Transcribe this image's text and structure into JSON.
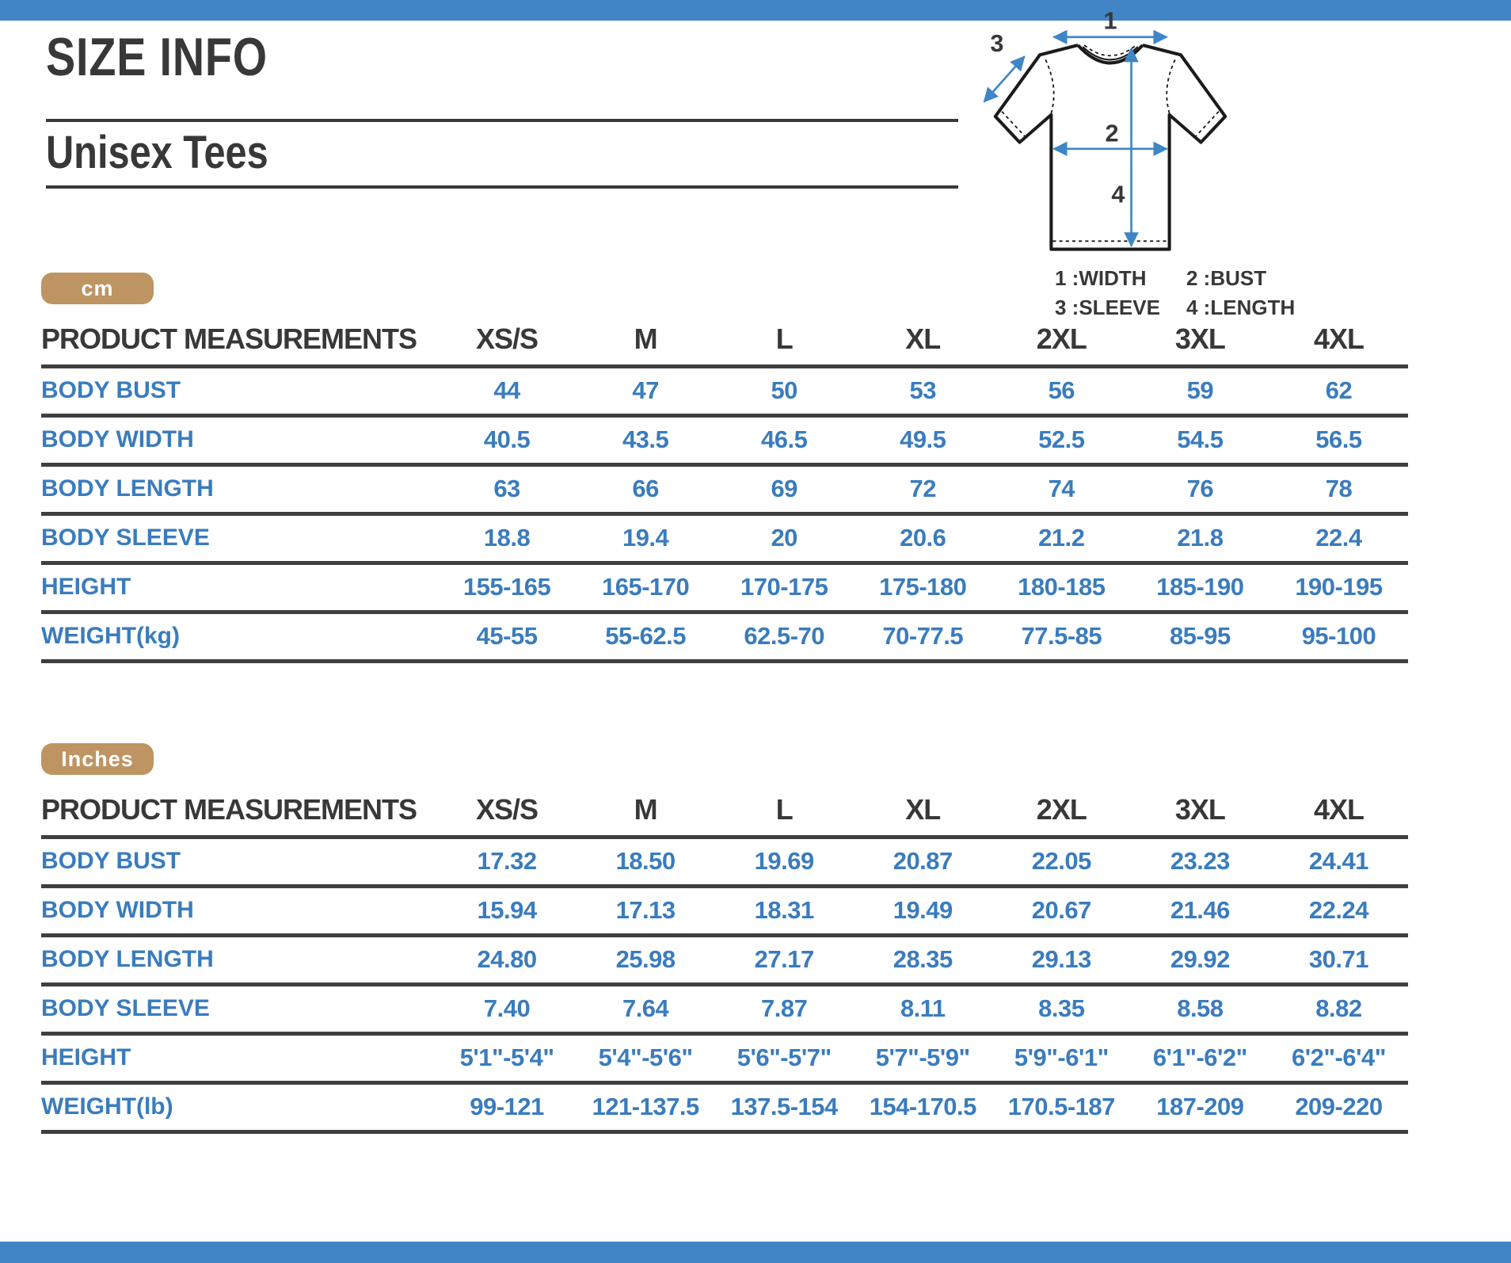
{
  "page": {
    "title": "SIZE INFO",
    "subtitle": "Unisex Tees"
  },
  "diagram": {
    "arrow_labels": [
      "1",
      "2",
      "3",
      "4"
    ],
    "legend": [
      "1 :WIDTH",
      "2 :BUST",
      "3 :SLEEVE",
      "4 :LENGTH"
    ]
  },
  "sections": [
    {
      "unit_badge": "cm",
      "columns": [
        "PRODUCT MEASUREMENTS",
        "XS/S",
        "M",
        "L",
        "XL",
        "2XL",
        "3XL",
        "4XL"
      ],
      "rows": [
        {
          "label": "BODY BUST",
          "values": [
            "44",
            "47",
            "50",
            "53",
            "56",
            "59",
            "62"
          ]
        },
        {
          "label": "BODY WIDTH",
          "values": [
            "40.5",
            "43.5",
            "46.5",
            "49.5",
            "52.5",
            "54.5",
            "56.5"
          ]
        },
        {
          "label": "BODY LENGTH",
          "values": [
            "63",
            "66",
            "69",
            "72",
            "74",
            "76",
            "78"
          ]
        },
        {
          "label": "BODY SLEEVE",
          "values": [
            "18.8",
            "19.4",
            "20",
            "20.6",
            "21.2",
            "21.8",
            "22.4"
          ]
        },
        {
          "label": "HEIGHT",
          "values": [
            "155-165",
            "165-170",
            "170-175",
            "175-180",
            "180-185",
            "185-190",
            "190-195"
          ]
        },
        {
          "label": "WEIGHT(kg)",
          "values": [
            "45-55",
            "55-62.5",
            "62.5-70",
            "70-77.5",
            "77.5-85",
            "85-95",
            "95-100"
          ]
        }
      ]
    },
    {
      "unit_badge": "Inches",
      "columns": [
        "PRODUCT MEASUREMENTS",
        "XS/S",
        "M",
        "L",
        "XL",
        "2XL",
        "3XL",
        "4XL"
      ],
      "rows": [
        {
          "label": "BODY BUST",
          "values": [
            "17.32",
            "18.50",
            "19.69",
            "20.87",
            "22.05",
            "23.23",
            "24.41"
          ]
        },
        {
          "label": "BODY WIDTH",
          "values": [
            "15.94",
            "17.13",
            "18.31",
            "19.49",
            "20.67",
            "21.46",
            "22.24"
          ]
        },
        {
          "label": "BODY LENGTH",
          "values": [
            "24.80",
            "25.98",
            "27.17",
            "28.35",
            "29.13",
            "29.92",
            "30.71"
          ]
        },
        {
          "label": "BODY SLEEVE",
          "values": [
            "7.40",
            "7.64",
            "7.87",
            "8.11",
            "8.35",
            "8.58",
            "8.82"
          ]
        },
        {
          "label": "HEIGHT",
          "values": [
            "5'1\"-5'4\"",
            "5'4\"-5'6\"",
            "5'6\"-5'7\"",
            "5'7\"-5'9\"",
            "5'9\"-6'1\"",
            "6'1\"-6'2\"",
            "6'2\"-6'4\""
          ]
        },
        {
          "label": "WEIGHT(lb)",
          "values": [
            "99-121",
            "121-137.5",
            "137.5-154",
            "154-170.5",
            "170.5-187",
            "187-209",
            "209-220"
          ]
        }
      ]
    }
  ],
  "colors": {
    "bar_blue": "#4285C5",
    "accent_blue": "#3A7CBD",
    "badge_tan": "#BE9463",
    "dark_text": "#383838",
    "table_line": "#3F3F3F"
  }
}
